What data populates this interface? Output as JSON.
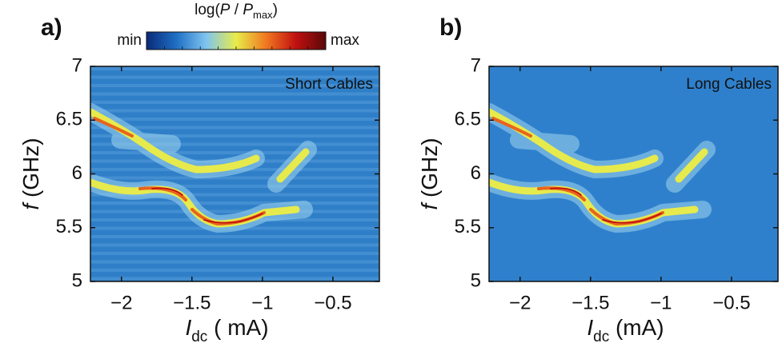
{
  "chart_data": [
    {
      "type": "heatmap",
      "panel_label": "a)",
      "annotation": "Short Cables",
      "xlabel": {
        "symbol": "I",
        "subscript": "dc",
        "unit": "( mA)"
      },
      "ylabel": {
        "symbol": "f",
        "unit": "(GHz)"
      },
      "xlim": [
        -2.22,
        -0.17
      ],
      "ylim": [
        5,
        7
      ],
      "xticks": [
        {
          "value": -2,
          "label": "−2"
        },
        {
          "value": -1.5,
          "label": "−1.5"
        },
        {
          "value": -1,
          "label": "−1"
        },
        {
          "value": -0.5,
          "label": "−0.5"
        }
      ],
      "yticks": [
        5,
        5.5,
        6,
        6.5,
        7
      ],
      "background": "#2f7fc8",
      "stripes": true,
      "colorbar": {
        "label": {
          "prefix": "log(",
          "symbol": "P",
          "separator": " / ",
          "denominator": "P",
          "subscript": "max",
          "suffix": ")"
        },
        "min_label": "min",
        "max_label": "max",
        "colors": [
          "#0a2a78",
          "#1f6fc4",
          "#7fc4f0",
          "#e8ec4a",
          "#f07820",
          "#c01010",
          "#5a0808"
        ]
      }
    },
    {
      "type": "heatmap",
      "panel_label": "b)",
      "annotation": "Long Cables",
      "xlabel": {
        "symbol": "I",
        "subscript": "dc",
        "unit": "(mA)"
      },
      "ylabel": {
        "symbol": "f",
        "unit": "(GHz)"
      },
      "xlim": [
        -2.22,
        -0.17
      ],
      "ylim": [
        5,
        7
      ],
      "xticks": [
        {
          "value": -2,
          "label": "−2"
        },
        {
          "value": -1.5,
          "label": "−1.5"
        },
        {
          "value": -1,
          "label": "−1"
        },
        {
          "value": -0.5,
          "label": "−0.5"
        }
      ],
      "yticks": [
        5,
        5.5,
        6,
        6.5,
        7
      ],
      "background": "#2f80cc",
      "stripes": false
    }
  ]
}
